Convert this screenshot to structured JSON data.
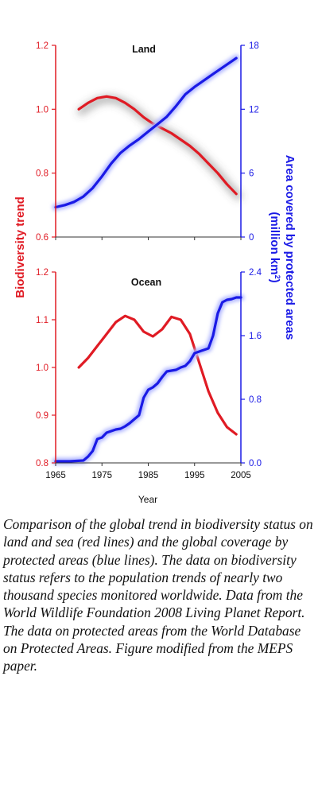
{
  "colors": {
    "biodiversity": "#e01b24",
    "protected": "#1a1ae6",
    "glow_blue": "#b3b9ff",
    "axis_left": "#e01b24",
    "axis_right": "#1a1ae6"
  },
  "caption": "Comparison of the global trend in biodiversity status on land and sea (red lines) and the global coverage by protected areas (blue lines). The data on biodiversity status refers to the population trends of nearly two thousand species monitored worldwide. Data from the World Wildlife Foundation 2008 Living Planet Report. The data on protected areas from the World Database on Protected Areas. Figure modified from the MEPS paper.",
  "shared": {
    "xlabel": "Year",
    "ylabel_left": "Biodiversity trend",
    "ylabel_right": "Area covered by protected areas",
    "ylabel_right_unit_prefix": "(million km",
    "ylabel_right_unit_sup": "2",
    "ylabel_right_unit_suffix": ")",
    "xticks": [
      1965,
      1975,
      1985,
      1995,
      2005
    ]
  },
  "chart_data": [
    {
      "type": "line",
      "title": "Land",
      "x_range": [
        1965,
        2005
      ],
      "y_left": {
        "range": [
          0.6,
          1.2
        ],
        "ticks": [
          "0.6",
          "0.8",
          "1.0",
          "1.2"
        ]
      },
      "y_right": {
        "range": [
          0,
          18
        ],
        "ticks": [
          "0",
          "6",
          "12",
          "18"
        ]
      },
      "series": [
        {
          "axis": "left",
          "color_key": "biodiversity",
          "x": [
            1970,
            1972,
            1974,
            1976,
            1978,
            1980,
            1982,
            1984,
            1986,
            1988,
            1990,
            1992,
            1994,
            1996,
            1998,
            2000,
            2002,
            2004
          ],
          "y": [
            1.0,
            1.02,
            1.035,
            1.04,
            1.035,
            1.02,
            1.0,
            0.975,
            0.955,
            0.94,
            0.925,
            0.905,
            0.885,
            0.86,
            0.83,
            0.8,
            0.765,
            0.735
          ]
        },
        {
          "axis": "right",
          "color_key": "protected",
          "x": [
            1965,
            1967,
            1969,
            1971,
            1973,
            1975,
            1977,
            1979,
            1981,
            1983,
            1985,
            1987,
            1989,
            1991,
            1993,
            1995,
            1997,
            1999,
            2001,
            2003,
            2004
          ],
          "y": [
            2.8,
            3.0,
            3.3,
            3.8,
            4.6,
            5.7,
            6.9,
            7.9,
            8.6,
            9.2,
            9.9,
            10.6,
            11.3,
            12.3,
            13.4,
            14.1,
            14.7,
            15.3,
            15.9,
            16.5,
            16.8
          ]
        }
      ]
    },
    {
      "type": "line",
      "title": "Ocean",
      "x_range": [
        1965,
        2005
      ],
      "y_left": {
        "range": [
          0.8,
          1.2
        ],
        "ticks": [
          "0.8",
          "0.9",
          "1.0",
          "1.1",
          "1.2"
        ]
      },
      "y_right": {
        "range": [
          0,
          2.4
        ],
        "ticks": [
          "0.0",
          "0.8",
          "1.6",
          "2.4"
        ]
      },
      "series": [
        {
          "axis": "left",
          "color_key": "biodiversity",
          "x": [
            1970,
            1972,
            1974,
            1976,
            1978,
            1980,
            1982,
            1984,
            1986,
            1988,
            1990,
            1992,
            1994,
            1996,
            1998,
            2000,
            2002,
            2004
          ],
          "y": [
            1.0,
            1.02,
            1.045,
            1.07,
            1.095,
            1.108,
            1.1,
            1.075,
            1.065,
            1.08,
            1.106,
            1.1,
            1.07,
            1.01,
            0.95,
            0.905,
            0.875,
            0.86
          ]
        },
        {
          "axis": "right",
          "color_key": "protected",
          "x": [
            1965,
            1968,
            1971,
            1972,
            1973,
            1974,
            1975,
            1976,
            1977,
            1978,
            1979,
            1980,
            1981,
            1982,
            1983,
            1984,
            1985,
            1986,
            1987,
            1988,
            1989,
            1990,
            1991,
            1992,
            1993,
            1994,
            1995,
            1996,
            1997,
            1998,
            1999,
            2000,
            2001,
            2002,
            2003,
            2004,
            2005
          ],
          "y": [
            0.02,
            0.02,
            0.03,
            0.08,
            0.15,
            0.3,
            0.32,
            0.38,
            0.4,
            0.42,
            0.43,
            0.46,
            0.5,
            0.55,
            0.6,
            0.82,
            0.92,
            0.95,
            1.0,
            1.08,
            1.15,
            1.16,
            1.17,
            1.2,
            1.22,
            1.28,
            1.38,
            1.4,
            1.42,
            1.44,
            1.6,
            1.88,
            2.02,
            2.05,
            2.06,
            2.08,
            2.08
          ]
        }
      ]
    }
  ]
}
